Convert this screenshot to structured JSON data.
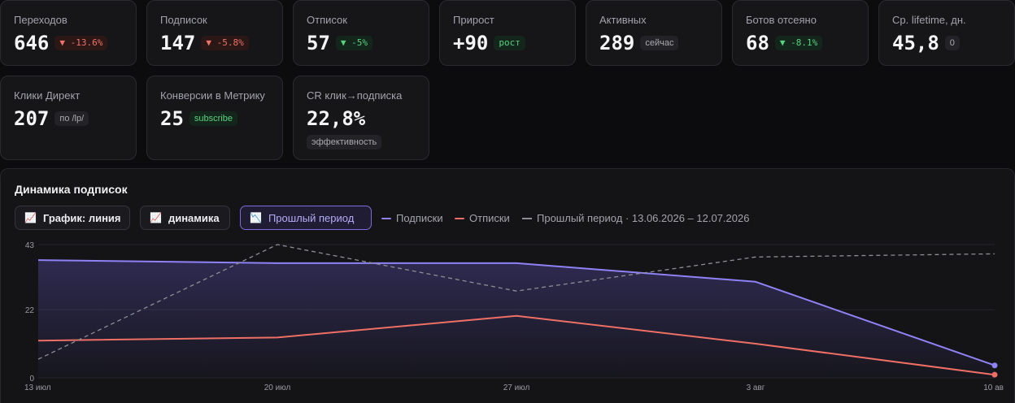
{
  "stats": [
    {
      "label": "Переходов",
      "value": "646",
      "badge": "▼ -13.6%",
      "badge_type": "neg"
    },
    {
      "label": "Подписок",
      "value": "147",
      "badge": "▼ -5.8%",
      "badge_type": "neg"
    },
    {
      "label": "Отписок",
      "value": "57",
      "badge": "▼ -5%",
      "badge_type": "pos"
    },
    {
      "label": "Прирост",
      "value": "+90",
      "badge": "рост",
      "badge_type": "pos"
    },
    {
      "label": "Активных",
      "value": "289",
      "badge": "сейчас",
      "badge_type": "neutral"
    },
    {
      "label": "Ботов отсеяно",
      "value": "68",
      "badge": "▼ -8.1%",
      "badge_type": "pos"
    },
    {
      "label": "Ср. lifetime, дн.",
      "value": "45,8",
      "badge": "0",
      "badge_type": "neutral"
    },
    {
      "label": "Клики Директ",
      "value": "207",
      "badge": "по /lp/",
      "badge_type": "neutral"
    },
    {
      "label": "Конверсии в Метрику",
      "value": "25",
      "badge": "subscribe",
      "badge_type": "pos"
    },
    {
      "label": "CR клик→подписка",
      "value": "22,8%",
      "badge": "эффективность",
      "badge_type": "neutral"
    }
  ],
  "panel": {
    "title": "Динамика подписок",
    "buttons": {
      "chart_type": "График: линия",
      "dynamics": "динамика",
      "prev_period": "Прошлый период"
    },
    "icons": {
      "chart_type": "chart-up-icon",
      "dynamics": "chart-up-icon",
      "prev_period": "chart-down-icon"
    },
    "legend": {
      "subs": "Подписки",
      "unsubs": "Отписки",
      "prev": "Прошлый период · 13.06.2026 – 12.07.2026"
    }
  },
  "chart_data": {
    "type": "line",
    "x": [
      "13 июл",
      "20 июл",
      "27 июл",
      "3 авг",
      "10 ав"
    ],
    "ylim": [
      0,
      43
    ],
    "yticks": [
      0,
      22,
      43
    ],
    "grid": true,
    "series": [
      {
        "name": "Подписки",
        "color": "#8f82f5",
        "values": [
          38,
          37,
          37,
          31,
          4
        ],
        "fill": true
      },
      {
        "name": "Отписки",
        "color": "#ee6f66",
        "values": [
          12,
          13,
          20,
          11,
          1
        ]
      },
      {
        "name": "Прошлый период · 13.06.2026 – 12.07.2026",
        "color": "#8d8d94",
        "dashed": true,
        "values": [
          6,
          43,
          28,
          39,
          40
        ]
      }
    ]
  }
}
